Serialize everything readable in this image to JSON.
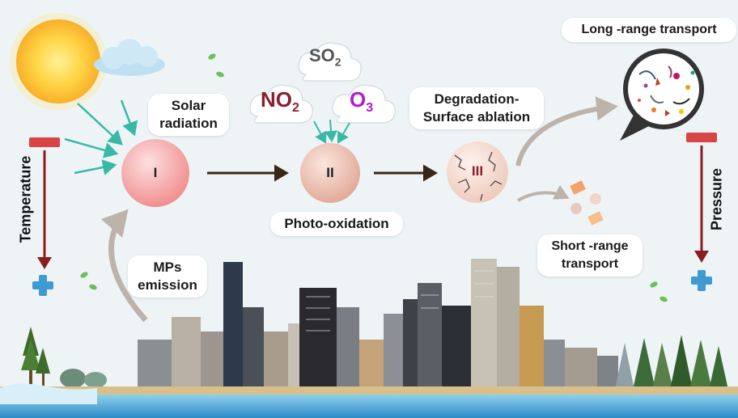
{
  "labels": {
    "solar_radiation_line1": "Solar",
    "solar_radiation_line2": "radiation",
    "photo_oxidation": "Photo-oxidation",
    "degradation_line1": "Degradation-",
    "degradation_line2": "Surface ablation",
    "long_range": "Long -range transport",
    "short_range_line1": "Short -range",
    "short_range_line2": "transport",
    "mps_line1": "MPs",
    "mps_line2": "emission",
    "temperature": "Temperature",
    "pressure": "Pressure"
  },
  "stages": {
    "one": "I",
    "two": "II",
    "three": "III"
  },
  "gases": {
    "so2_main": "SO",
    "so2_sub": "2",
    "no2_main": "NO",
    "no2_sub": "2",
    "o3_main": "O",
    "o3_sub": "3"
  },
  "colors": {
    "sky": "#eef4f6",
    "stage_one": "#f4a4a4",
    "stage_two": "#ecc0b2",
    "stage_three": "#f2d6cc",
    "radiation_arrow": "#3ab8a6",
    "process_arrow": "#3a2616",
    "transport_arrow": "#bdb3ab",
    "gauge_bar": "#d94545",
    "gauge_arrow": "#8a1d1d",
    "plus_marker": "#3f9ad4",
    "no2_color": "#8b1e2e",
    "o3_color": "#b41bd1",
    "so2_color": "#555555"
  },
  "icons": [
    "sun-icon",
    "cloud-icon",
    "tree-icon",
    "buildings-icon",
    "plus-icon",
    "particle-icon",
    "magnifier-icon"
  ]
}
